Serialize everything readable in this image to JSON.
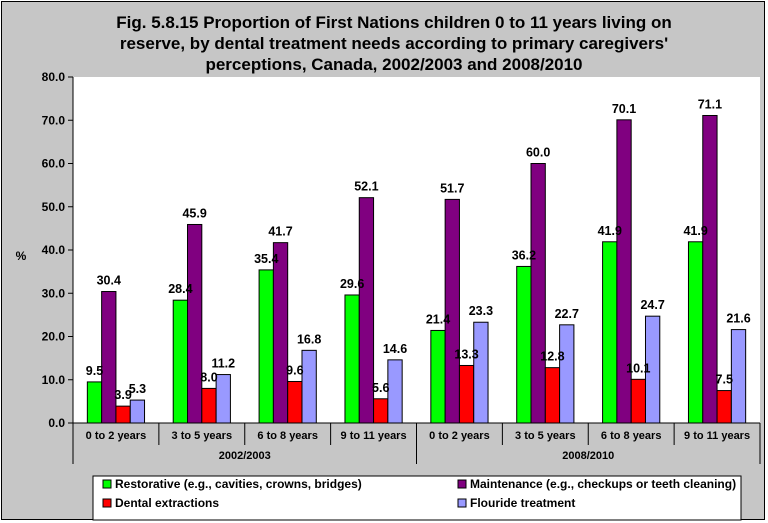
{
  "chart_data": {
    "type": "bar",
    "title_lines": [
      "Fig. 5.8.15 Proportion of First Nations children 0 to 11 years living on",
      "reserve, by dental treatment needs according to primary caregivers'",
      "perceptions, Canada, 2002/2003 and 2008/2010"
    ],
    "ylabel": "%",
    "ylim": [
      0,
      80
    ],
    "yticks": [
      "0.0",
      "10.0",
      "20.0",
      "30.0",
      "40.0",
      "50.0",
      "60.0",
      "70.0",
      "80.0"
    ],
    "grid": false,
    "legend_position": "bottom",
    "groups": [
      {
        "label": "2002/2003",
        "categories": [
          "0 to 2 years",
          "3 to 5 years",
          "6 to 8 years",
          "9 to 11 years"
        ]
      },
      {
        "label": "2008/2010",
        "categories": [
          "0 to 2 years",
          "3 to 5 years",
          "6 to 8 years",
          "9 to 11 years"
        ]
      }
    ],
    "series": [
      {
        "name": "Restorative (e.g., cavities, crowns, bridges)",
        "color": "#00ff00",
        "values": [
          9.5,
          28.4,
          35.4,
          29.6,
          21.4,
          36.2,
          41.9,
          41.9
        ],
        "labels": [
          "9.5",
          "28.4",
          "35.4",
          "29.6",
          "21.4",
          "36.2",
          "41.9",
          "41.9"
        ]
      },
      {
        "name": "Maintenance (e.g., checkups or teeth cleaning)",
        "color": "#800080",
        "values": [
          30.4,
          45.9,
          41.7,
          52.1,
          51.7,
          60.0,
          70.1,
          71.1
        ],
        "labels": [
          "30.4",
          "45.9",
          "41.7",
          "52.1",
          "51.7",
          "60.0",
          "70.1",
          "71.1"
        ]
      },
      {
        "name": "Dental extractions",
        "color": "#ff0000",
        "values": [
          3.9,
          8.0,
          9.6,
          5.6,
          13.3,
          12.8,
          10.1,
          7.5
        ],
        "labels": [
          "3.9",
          "8.0",
          "9.6",
          "5.6",
          "13.3",
          "12.8",
          "10.1",
          "7.5"
        ]
      },
      {
        "name": "Flouride treatment",
        "color": "#9999ff",
        "values": [
          5.3,
          11.2,
          16.8,
          14.6,
          23.3,
          22.7,
          24.7,
          21.6
        ],
        "labels": [
          "5.3",
          "11.2",
          "16.8",
          "14.6",
          "23.3",
          "22.7",
          "24.7",
          "21.6"
        ]
      }
    ]
  }
}
